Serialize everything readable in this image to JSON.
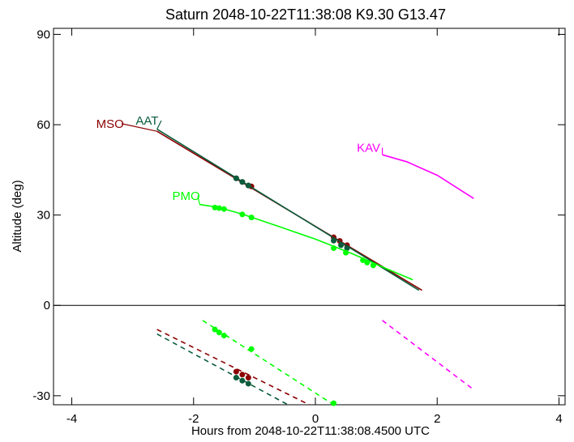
{
  "chart_data": {
    "type": "line",
    "title": "Saturn 2048-10-22T11:38:08  K9.30  G13.47",
    "xlabel": "Hours from 2048-10-22T11:38:08.4500 UTC",
    "ylabel": "Altitude (deg)",
    "xlim": [
      -4.3,
      4.1
    ],
    "ylim": [
      -33,
      92
    ],
    "xticks": [
      -4,
      -2,
      0,
      2,
      4
    ],
    "xtick_labels": [
      "-4",
      "-2",
      "0",
      "2",
      "4"
    ],
    "yticks": [
      -30,
      0,
      30,
      60,
      90
    ],
    "ytick_labels": [
      "-30",
      "0",
      "30",
      "60",
      "90"
    ],
    "zero_line": 0,
    "grid": false,
    "series": [
      {
        "name": "MSO",
        "color": "#8b0000",
        "label_at": [
          -3.6,
          59
        ],
        "label_anchor": "start",
        "label_line_to": [
          -2.6,
          57.8
        ],
        "solid": [
          [
            -2.6,
            57.8
          ],
          [
            1.75,
            5
          ]
        ],
        "dashed": [
          [
            [
              -2.6,
              -8
            ],
            [
              -0.1,
              -33
            ]
          ]
        ],
        "markers": [
          [
            -1.3,
            42.2
          ],
          [
            -1.2,
            41
          ],
          [
            -1.1,
            39.8
          ],
          [
            -1.05,
            39.5
          ],
          [
            0.3,
            22.6
          ],
          [
            0.4,
            21.4
          ],
          [
            0.52,
            20
          ],
          [
            -1.3,
            -22
          ],
          [
            -1.2,
            -23
          ],
          [
            -1.1,
            -24
          ]
        ]
      },
      {
        "name": "AAT",
        "color": "#0a5c3c",
        "label_at": [
          -2.95,
          60
        ],
        "label_anchor": "start",
        "label_line_to": [
          -2.6,
          58.5
        ],
        "solid": [
          [
            -2.6,
            58.5
          ],
          [
            1.7,
            5
          ]
        ],
        "dashed": [
          [
            [
              -2.6,
              -9.5
            ],
            [
              -0.45,
              -33
            ]
          ]
        ],
        "markers": [
          [
            -1.3,
            42.2
          ],
          [
            -1.2,
            41
          ],
          [
            -1.1,
            39.8
          ],
          [
            0.3,
            21.5
          ],
          [
            0.42,
            20
          ],
          [
            0.52,
            19
          ],
          [
            -1.3,
            -24
          ],
          [
            -1.2,
            -25
          ],
          [
            -1.1,
            -26
          ]
        ]
      },
      {
        "name": "PMO",
        "color": "#00ff00",
        "label_at": [
          -2.35,
          35
        ],
        "label_anchor": "start",
        "label_line_to": [
          -1.9,
          33.5
        ],
        "curve": [
          [
            -1.9,
            33.5
          ],
          [
            -1.6,
            32.6
          ],
          [
            -1.2,
            30.3
          ],
          [
            -0.6,
            26.2
          ],
          [
            0,
            22
          ],
          [
            0.6,
            17.2
          ],
          [
            1.2,
            11.9
          ],
          [
            1.6,
            8.5
          ]
        ],
        "dashed": [
          [
            [
              -1.85,
              -5
            ],
            [
              0.3,
              -33
            ]
          ]
        ],
        "markers": [
          [
            -1.65,
            32.5
          ],
          [
            -1.58,
            32.3
          ],
          [
            -1.5,
            32
          ],
          [
            -1.2,
            30.2
          ],
          [
            -1.05,
            29.2
          ],
          [
            0.3,
            19
          ],
          [
            0.5,
            17.5
          ],
          [
            0.78,
            15
          ],
          [
            0.85,
            14.2
          ],
          [
            0.95,
            13.3
          ],
          [
            -1.65,
            -8
          ],
          [
            -1.58,
            -9
          ],
          [
            -1.5,
            -10
          ],
          [
            -1.05,
            -14.5
          ],
          [
            0.3,
            -32.5
          ]
        ]
      },
      {
        "name": "KAV",
        "color": "#ff00ff",
        "label_at": [
          0.68,
          51
        ],
        "label_anchor": "start",
        "label_line_to": [
          1.1,
          50
        ],
        "curve": [
          [
            1.1,
            50
          ],
          [
            1.5,
            47.7
          ],
          [
            2.0,
            43.2
          ],
          [
            2.6,
            35.5
          ]
        ],
        "dashed": [
          [
            [
              1.1,
              -5
            ],
            [
              2.6,
              -28
            ]
          ]
        ],
        "markers": []
      }
    ]
  }
}
